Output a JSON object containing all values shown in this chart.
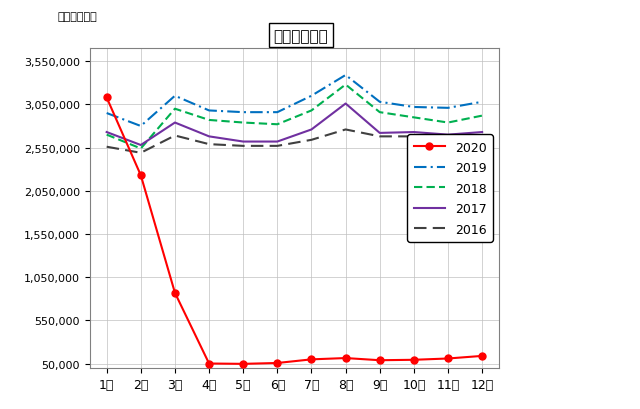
{
  "title": "国際線旅客数",
  "unit_label": "（単位：人）",
  "months": [
    "1月",
    "2月",
    "3月",
    "4月",
    "5月",
    "6月",
    "7月",
    "8月",
    "9月",
    "10月",
    "11月",
    "12月"
  ],
  "series": {
    "2020": [
      3130000,
      2230000,
      870000,
      52000,
      48000,
      58000,
      100000,
      115000,
      90000,
      95000,
      110000,
      140000
    ],
    "2019": [
      2950000,
      2800000,
      3150000,
      2980000,
      2960000,
      2960000,
      3150000,
      3390000,
      3080000,
      3020000,
      3010000,
      3080000
    ],
    "2018": [
      2700000,
      2540000,
      3000000,
      2870000,
      2840000,
      2820000,
      2980000,
      3280000,
      2960000,
      2900000,
      2840000,
      2920000
    ],
    "2017": [
      2730000,
      2580000,
      2840000,
      2680000,
      2620000,
      2620000,
      2760000,
      3060000,
      2720000,
      2730000,
      2700000,
      2730000
    ],
    "2016": [
      2560000,
      2490000,
      2690000,
      2590000,
      2570000,
      2570000,
      2640000,
      2760000,
      2680000,
      2680000,
      2580000,
      2590000
    ]
  },
  "colors": {
    "2020": "#ff0000",
    "2019": "#0070c0",
    "2018": "#00b050",
    "2017": "#7030a0",
    "2016": "#404040"
  },
  "linestyles": {
    "2020": "solid",
    "2019": "dashdot",
    "2018": "dashed",
    "2017": "solid",
    "2016": "dashed"
  },
  "markers": {
    "2020": "o",
    "2019": "",
    "2018": "",
    "2017": "",
    "2016": ""
  },
  "dashes": {
    "2019": [
      6,
      2,
      1,
      2
    ],
    "2018": [
      4,
      2
    ],
    "2016": [
      6,
      3
    ]
  },
  "ylim": [
    0,
    3700000
  ],
  "yticks": [
    50000,
    550000,
    1050000,
    1550000,
    2050000,
    2550000,
    3050000,
    3550000
  ],
  "ytick_labels": [
    "50,000",
    "550,000",
    "1,050,000",
    "1,550,000",
    "2,050,000",
    "2,550,000",
    "3,050,000",
    "3,550,000"
  ],
  "background_color": "#ffffff",
  "grid_color": "#c0c0c0",
  "legend_order": [
    "2020",
    "2019",
    "2018",
    "2017",
    "2016"
  ]
}
